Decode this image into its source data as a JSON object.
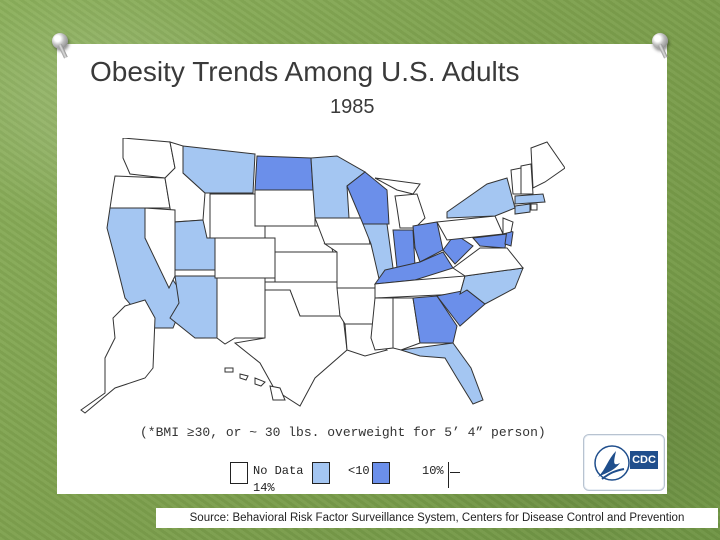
{
  "slide": {
    "title": "Obesity Trends Among U.S. Adults",
    "subtitle": "1985",
    "note": "(*BMI ≥30, or ~ 30 lbs. overweight for 5’ 4” person)"
  },
  "legend": {
    "items": [
      {
        "label": "No Data",
        "color": "#ffffff"
      },
      {
        "label": "<10%",
        "color": "#a4c6f2"
      },
      {
        "label": "10%–14%",
        "color": "#6b8fea"
      }
    ],
    "no_data_label": "No Data",
    "less_than_10_label": "<10",
    "ten_label": "10%",
    "fourteen_label": "14%"
  },
  "logo": {
    "name": "CDC logo",
    "text": "CDC"
  },
  "source": "Source: Behavioral Risk Factor Surveillance System, Centers for Disease Control and Prevention",
  "colors": {
    "no_data": "#ffffff",
    "lt10": "#a4c6f2",
    "ten_to_14": "#6b8fea",
    "border": "#333333"
  }
}
